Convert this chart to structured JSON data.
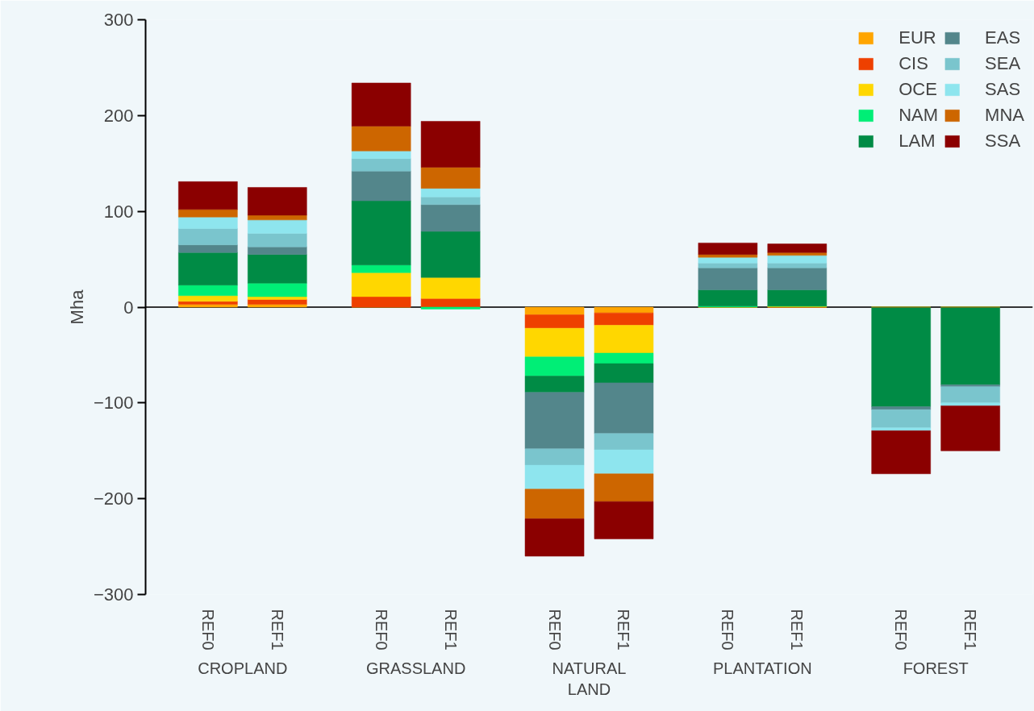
{
  "chart_data": {
    "type": "bar",
    "stacked": true,
    "ylabel": "Mha",
    "categories": [
      "REF0",
      "REF1",
      "REF0",
      "REF1",
      "REF0",
      "REF1",
      "REF0",
      "REF1",
      "REF0",
      "REF1"
    ],
    "annotations": [
      "CROPLAND",
      "GRASSLAND",
      "NATURAL\nLAND",
      "PLANTATION",
      "FOREST"
    ],
    "ylim": [
      -300,
      300
    ],
    "yticks": [
      -300,
      -200,
      -100,
      0,
      100,
      200,
      300
    ],
    "grid": false,
    "legend": "top right",
    "ref_lines": [
      {
        "axis": "y",
        "value": 0,
        "color": "#333333"
      }
    ],
    "series": [
      {
        "name": "EUR",
        "color": "#ffa500",
        "values": [
          3,
          3,
          0,
          0,
          -8,
          -6,
          0,
          0,
          0,
          0
        ]
      },
      {
        "name": "CIS",
        "color": "#ee4000",
        "values": [
          3,
          5,
          11,
          9,
          -14,
          -13,
          0,
          0,
          0,
          0
        ]
      },
      {
        "name": "OCE",
        "color": "#ffd700",
        "values": [
          6,
          3,
          25,
          22,
          -30,
          -29,
          0,
          1,
          0,
          0
        ]
      },
      {
        "name": "NAM",
        "color": "#00ee76",
        "values": [
          11,
          14,
          8,
          -2,
          -20,
          -11,
          1,
          0,
          0,
          0
        ]
      },
      {
        "name": "LAM",
        "color": "#008b45",
        "values": [
          34,
          30,
          67,
          48,
          -17,
          -20,
          17,
          17,
          -104,
          -81
        ]
      },
      {
        "name": "EAS",
        "color": "#53868b",
        "values": [
          8,
          8,
          31,
          28,
          -59,
          -53,
          23,
          23,
          -3,
          -2
        ]
      },
      {
        "name": "SEA",
        "color": "#7ac5cd",
        "values": [
          17,
          14,
          13,
          8,
          -17,
          -17,
          5,
          5,
          -19,
          -17
        ]
      },
      {
        "name": "SAS",
        "color": "#8ee5ee",
        "values": [
          12,
          14,
          8,
          9,
          -25,
          -25,
          6,
          8,
          -3,
          -3
        ]
      },
      {
        "name": "MNA",
        "color": "#cd6600",
        "values": [
          8,
          5,
          26,
          22,
          -31,
          -29,
          3,
          3,
          0,
          0
        ]
      },
      {
        "name": "SSA",
        "color": "#8b0000",
        "values": [
          29,
          29,
          45,
          48,
          -39,
          -39,
          12,
          9,
          -45,
          -47
        ]
      }
    ]
  }
}
